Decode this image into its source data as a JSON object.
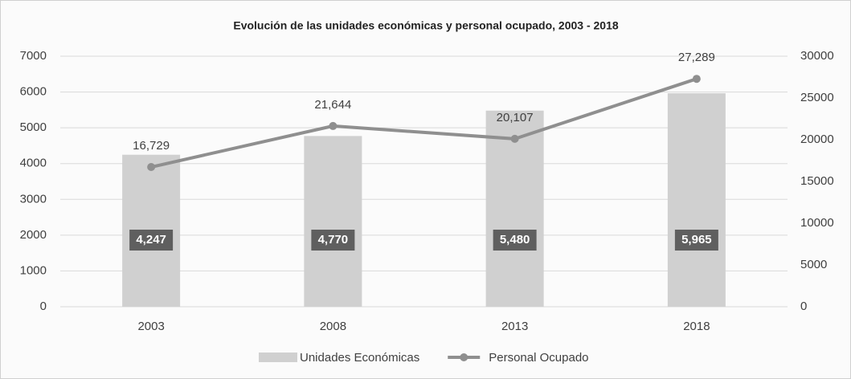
{
  "chart_data": {
    "type": "bar",
    "title": "Evolución de las unidades económicas y personal ocupado, 2003 - 2018",
    "categories": [
      "2003",
      "2008",
      "2013",
      "2018"
    ],
    "series": [
      {
        "name": "Unidades Económicas",
        "type": "bar",
        "color": "#d0d0d0",
        "values": [
          4247,
          4770,
          5480,
          5965
        ],
        "value_labels": [
          "4,247",
          "4,770",
          "5,480",
          "5,965"
        ]
      },
      {
        "name": "Personal Ocupado",
        "type": "line",
        "axis": "y2",
        "color": "#8f8f8f",
        "values": [
          16729,
          21644,
          20107,
          27289
        ],
        "value_labels": [
          "16,729",
          "21,644",
          "20,107",
          "27,289"
        ]
      }
    ],
    "ylim": [
      0,
      7000
    ],
    "yticks": [
      0,
      1000,
      2000,
      3000,
      4000,
      5000,
      6000,
      7000
    ],
    "y2lim": [
      0,
      30000
    ],
    "y2ticks": [
      0,
      5000,
      10000,
      15000,
      20000,
      25000,
      30000
    ],
    "grid": true,
    "legend": "bottom"
  }
}
